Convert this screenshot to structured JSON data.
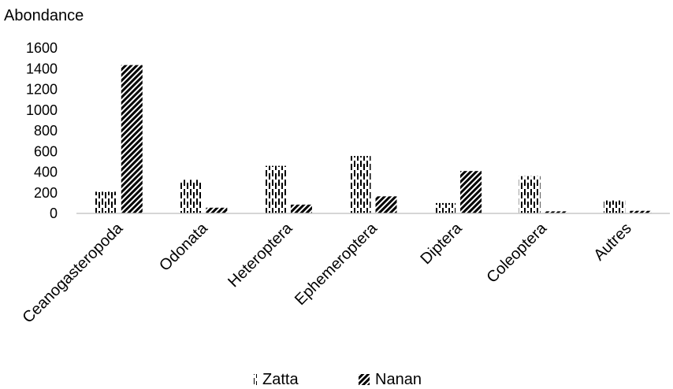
{
  "chart_data": {
    "type": "bar",
    "ylabel": "Abondance",
    "xlabel": "",
    "title": "",
    "ylim": [
      0,
      1600
    ],
    "yticks": [
      0,
      200,
      400,
      600,
      800,
      1000,
      1200,
      1400,
      1600
    ],
    "categories": [
      "Ceanogasteropoda",
      "Odonata",
      "Heteroptera",
      "Ephemeroptera",
      "Diptera",
      "Coleoptera",
      "Autres"
    ],
    "series": [
      {
        "name": "Zatta",
        "values": [
          210,
          325,
          460,
          555,
          100,
          360,
          125
        ],
        "pattern": "dashed-vertical",
        "color": "#000000"
      },
      {
        "name": "Nanan",
        "values": [
          1435,
          55,
          85,
          165,
          410,
          20,
          25
        ],
        "pattern": "diagonal-hatch",
        "color": "#000000"
      }
    ],
    "grid": false,
    "legend_position": "bottom"
  }
}
